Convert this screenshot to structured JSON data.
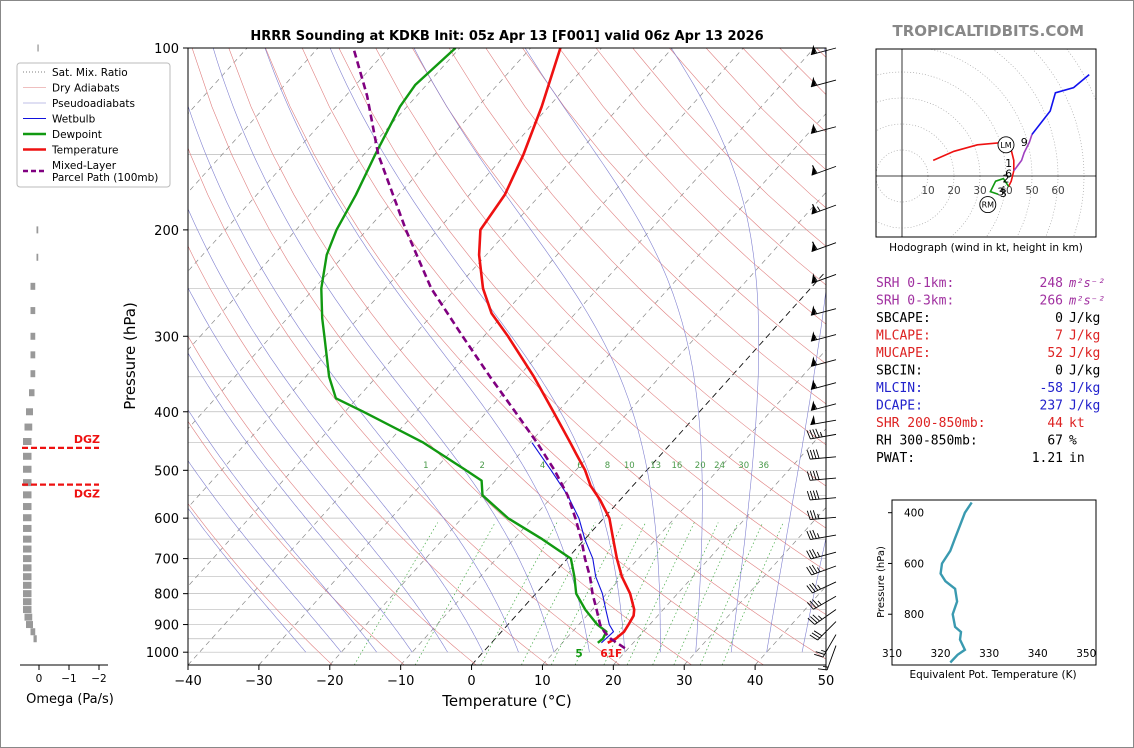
{
  "site": "TROPICALTIDBITS.COM",
  "title": "HRRR Sounding at KDKB Init: 05z Apr 13 [F001] valid 06z Apr 13 2026",
  "colors": {
    "temperature": "#ee1111",
    "dewpoint": "#119911",
    "wetbulb": "#1111dd",
    "parcel": "#800080",
    "dry_adiabat": "#e08080",
    "moist_adiabat": "#8080d0",
    "mixing_ratio": "#44aa44",
    "isotherm": "#555555",
    "theta_e": "#3a9ab0",
    "dgz": "#ee1111",
    "omega_bar": "#999999",
    "hodo_0_3": "#ee1111",
    "hodo_3_6": "#119911",
    "hodo_6_9": "#a040c0",
    "hodo_9_12": "#1111ee",
    "srh": "#a030a0",
    "ml": "#dd2222",
    "mlcin": "#2222cc"
  },
  "legend": [
    {
      "label": "Sat. Mix. Ratio",
      "color": "#555555",
      "style": "dotted"
    },
    {
      "label": "Dry Adiabats",
      "color": "#e08080",
      "style": "solid-thin"
    },
    {
      "label": "Pseudoadiabats",
      "color": "#8080d0",
      "style": "solid-thin"
    },
    {
      "label": "Wetbulb",
      "color": "#1111dd",
      "style": "solid"
    },
    {
      "label": "Dewpoint",
      "color": "#119911",
      "style": "solid-thick"
    },
    {
      "label": "Temperature",
      "color": "#ee1111",
      "style": "solid-thick"
    },
    {
      "label": "Mixed-Layer\nParcel Path (100mb)",
      "color": "#800080",
      "style": "dashed"
    }
  ],
  "omega": {
    "label": "Omega (Pa/s)",
    "ticks": [
      "0",
      "−1",
      "−2"
    ],
    "dgz_label": "DGZ",
    "dgz_bounds_hpa": [
      459,
      528
    ],
    "values": [
      {
        "p": 100,
        "w": 0.02
      },
      {
        "p": 112,
        "w": 0.05
      },
      {
        "p": 128,
        "w": 0.1
      },
      {
        "p": 146,
        "w": 0.12
      },
      {
        "p": 165,
        "w": 0.05
      },
      {
        "p": 200,
        "w": 0.05
      },
      {
        "p": 222,
        "w": 0.05
      },
      {
        "p": 248,
        "w": 0.25
      },
      {
        "p": 272,
        "w": 0.25
      },
      {
        "p": 300,
        "w": 0.25
      },
      {
        "p": 322,
        "w": 0.25
      },
      {
        "p": 346,
        "w": 0.25
      },
      {
        "p": 372,
        "w": 0.3
      },
      {
        "p": 400,
        "w": 0.4
      },
      {
        "p": 424,
        "w": 0.45
      },
      {
        "p": 448,
        "w": 0.5
      },
      {
        "p": 474,
        "w": 0.5
      },
      {
        "p": 498,
        "w": 0.5
      },
      {
        "p": 524,
        "w": 0.5
      },
      {
        "p": 549,
        "w": 0.5
      },
      {
        "p": 574,
        "w": 0.5
      },
      {
        "p": 599,
        "w": 0.5
      },
      {
        "p": 624,
        "w": 0.5
      },
      {
        "p": 650,
        "w": 0.5
      },
      {
        "p": 675,
        "w": 0.5
      },
      {
        "p": 700,
        "w": 0.5
      },
      {
        "p": 725,
        "w": 0.5
      },
      {
        "p": 750,
        "w": 0.5
      },
      {
        "p": 775,
        "w": 0.5
      },
      {
        "p": 800,
        "w": 0.5
      },
      {
        "p": 825,
        "w": 0.5
      },
      {
        "p": 850,
        "w": 0.5
      },
      {
        "p": 875,
        "w": 0.45
      },
      {
        "p": 900,
        "w": 0.4
      },
      {
        "p": 925,
        "w": 0.25
      },
      {
        "p": 950,
        "w": 0.15
      }
    ]
  },
  "chart_data": [
    {
      "type": "line",
      "subtype": "skew-t",
      "title": "HRRR Sounding at KDKB Init: 05z Apr 13 [F001] valid 06z Apr 13 2026",
      "xlabel": "Temperature (°C)",
      "ylabel": "Pressure (hPa)",
      "xlim": [
        -40,
        50
      ],
      "ylim": [
        1050,
        100
      ],
      "yscale": "log",
      "x_ticks": [
        -40,
        -30,
        -20,
        -10,
        0,
        10,
        20,
        30,
        40,
        50
      ],
      "y_ticks": [
        100,
        200,
        300,
        400,
        500,
        600,
        700,
        800,
        900,
        1000
      ],
      "mixing_ratio_labels": [
        "1",
        "2",
        "4",
        "6",
        "8",
        "10",
        "13",
        "16",
        "20",
        "24",
        "30",
        "36"
      ],
      "surface_temp_label": "61F",
      "surface_dewp_label": "5",
      "series": [
        {
          "name": "Temperature",
          "points": [
            {
              "p": 965,
              "t": 16.4
            },
            {
              "p": 950,
              "t": 17.0
            },
            {
              "p": 925,
              "t": 17.3
            },
            {
              "p": 900,
              "t": 17.0
            },
            {
              "p": 870,
              "t": 16.6
            },
            {
              "p": 850,
              "t": 15.9
            },
            {
              "p": 800,
              "t": 13.3
            },
            {
              "p": 750,
              "t": 10.0
            },
            {
              "p": 700,
              "t": 7.0
            },
            {
              "p": 650,
              "t": 4.0
            },
            {
              "p": 600,
              "t": 0.8
            },
            {
              "p": 560,
              "t": -2.8
            },
            {
              "p": 530,
              "t": -6.0
            },
            {
              "p": 500,
              "t": -8.7
            },
            {
              "p": 470,
              "t": -12.0
            },
            {
              "p": 450,
              "t": -14.3
            },
            {
              "p": 400,
              "t": -20.6
            },
            {
              "p": 350,
              "t": -27.8
            },
            {
              "p": 300,
              "t": -36.6
            },
            {
              "p": 275,
              "t": -41.8
            },
            {
              "p": 250,
              "t": -46.2
            },
            {
              "p": 220,
              "t": -51.0
            },
            {
              "p": 200,
              "t": -54.0
            },
            {
              "p": 175,
              "t": -55.0
            },
            {
              "p": 150,
              "t": -57.5
            },
            {
              "p": 125,
              "t": -61.0
            },
            {
              "p": 100,
              "t": -65.8
            }
          ]
        },
        {
          "name": "Dewpoint",
          "points": [
            {
              "p": 965,
              "t": 15.0
            },
            {
              "p": 950,
              "t": 15.2
            },
            {
              "p": 925,
              "t": 14.8
            },
            {
              "p": 900,
              "t": 12.6
            },
            {
              "p": 850,
              "t": 9.0
            },
            {
              "p": 800,
              "t": 5.7
            },
            {
              "p": 750,
              "t": 3.3
            },
            {
              "p": 700,
              "t": 0.5
            },
            {
              "p": 650,
              "t": -6.0
            },
            {
              "p": 600,
              "t": -13.5
            },
            {
              "p": 550,
              "t": -20.0
            },
            {
              "p": 520,
              "t": -22.0
            },
            {
              "p": 500,
              "t": -25.5
            },
            {
              "p": 450,
              "t": -35.0
            },
            {
              "p": 400,
              "t": -47.4
            },
            {
              "p": 380,
              "t": -53.0
            },
            {
              "p": 350,
              "t": -56.7
            },
            {
              "p": 300,
              "t": -62.5
            },
            {
              "p": 280,
              "t": -65.1
            },
            {
              "p": 250,
              "t": -69.0
            },
            {
              "p": 220,
              "t": -72.5
            },
            {
              "p": 200,
              "t": -74.3
            },
            {
              "p": 175,
              "t": -76.0
            },
            {
              "p": 150,
              "t": -78.4
            },
            {
              "p": 125,
              "t": -81.0
            },
            {
              "p": 115,
              "t": -81.6
            },
            {
              "p": 100,
              "t": -80.6
            }
          ]
        },
        {
          "name": "Wetbulb",
          "points": [
            {
              "p": 965,
              "t": 15.5
            },
            {
              "p": 925,
              "t": 15.8
            },
            {
              "p": 900,
              "t": 14.3
            },
            {
              "p": 850,
              "t": 11.9
            },
            {
              "p": 800,
              "t": 9.4
            },
            {
              "p": 750,
              "t": 6.3
            },
            {
              "p": 700,
              "t": 3.6
            },
            {
              "p": 650,
              "t": 0.0
            },
            {
              "p": 600,
              "t": -3.5
            },
            {
              "p": 550,
              "t": -8.0
            },
            {
              "p": 500,
              "t": -13.5
            },
            {
              "p": 450,
              "t": -19.7
            }
          ]
        },
        {
          "name": "Mixed-Layer Parcel Path (100mb)",
          "points": [
            {
              "p": 985,
              "t": 19.5
            },
            {
              "p": 950,
              "t": 16.3
            },
            {
              "p": 925,
              "t": 14.5
            },
            {
              "p": 900,
              "t": 13.0
            },
            {
              "p": 850,
              "t": 10.6
            },
            {
              "p": 800,
              "t": 8.0
            },
            {
              "p": 750,
              "t": 5.5
            },
            {
              "p": 700,
              "t": 2.5
            },
            {
              "p": 650,
              "t": -0.5
            },
            {
              "p": 600,
              "t": -4.0
            },
            {
              "p": 550,
              "t": -8.0
            },
            {
              "p": 500,
              "t": -13.0
            },
            {
              "p": 450,
              "t": -19.0
            },
            {
              "p": 400,
              "t": -26.0
            },
            {
              "p": 350,
              "t": -34.0
            },
            {
              "p": 300,
              "t": -43.0
            },
            {
              "p": 250,
              "t": -53.5
            },
            {
              "p": 200,
              "t": -64.5
            },
            {
              "p": 150,
              "t": -78.0
            },
            {
              "p": 120,
              "t": -87.0
            },
            {
              "p": 100,
              "t": -95.0
            }
          ]
        }
      ],
      "wind_barbs": [
        {
          "p": 100,
          "dir": 255,
          "kt": 55
        },
        {
          "p": 113,
          "dir": 255,
          "kt": 55
        },
        {
          "p": 135,
          "dir": 255,
          "kt": 55
        },
        {
          "p": 157,
          "dir": 250,
          "kt": 60
        },
        {
          "p": 182,
          "dir": 250,
          "kt": 65
        },
        {
          "p": 210,
          "dir": 250,
          "kt": 60
        },
        {
          "p": 237,
          "dir": 250,
          "kt": 55
        },
        {
          "p": 270,
          "dir": 255,
          "kt": 55
        },
        {
          "p": 298,
          "dir": 255,
          "kt": 55
        },
        {
          "p": 328,
          "dir": 255,
          "kt": 55
        },
        {
          "p": 358,
          "dir": 255,
          "kt": 55
        },
        {
          "p": 388,
          "dir": 255,
          "kt": 55
        },
        {
          "p": 413,
          "dir": 260,
          "kt": 50
        },
        {
          "p": 436,
          "dir": 260,
          "kt": 45
        },
        {
          "p": 475,
          "dir": 265,
          "kt": 40
        },
        {
          "p": 515,
          "dir": 265,
          "kt": 40
        },
        {
          "p": 555,
          "dir": 265,
          "kt": 40
        },
        {
          "p": 598,
          "dir": 265,
          "kt": 35
        },
        {
          "p": 640,
          "dir": 260,
          "kt": 35
        },
        {
          "p": 683,
          "dir": 255,
          "kt": 35
        },
        {
          "p": 720,
          "dir": 250,
          "kt": 35
        },
        {
          "p": 765,
          "dir": 245,
          "kt": 35
        },
        {
          "p": 808,
          "dir": 240,
          "kt": 35
        },
        {
          "p": 850,
          "dir": 235,
          "kt": 35
        },
        {
          "p": 890,
          "dir": 225,
          "kt": 30
        },
        {
          "p": 935,
          "dir": 210,
          "kt": 25
        },
        {
          "p": 975,
          "dir": 200,
          "kt": 15
        }
      ]
    },
    {
      "type": "line",
      "subtype": "hodograph",
      "caption": "Hodograph (wind in kt, height in km)",
      "ring_labels": [
        "10",
        "20",
        "30",
        "40",
        "50",
        "60"
      ],
      "xlim": [
        -10,
        75
      ],
      "ylim": [
        -22,
        43
      ],
      "height_labels": [
        {
          "text": "9",
          "u": 47,
          "v": 13
        },
        {
          "text": "1",
          "u": 41,
          "v": 5
        },
        {
          "text": "6",
          "u": 41,
          "v": 1
        },
        {
          "text": "2",
          "u": 40,
          "v": -1
        },
        {
          "text": "3",
          "u": 38,
          "v": -6
        },
        {
          "text": "3",
          "u": 39,
          "v": -6.5
        }
      ],
      "storm_motion": [
        {
          "label": "LM",
          "u": 40,
          "v": 12
        },
        {
          "label": "RM",
          "u": 33,
          "v": -11
        }
      ],
      "segments": [
        {
          "name": "0-3 km",
          "color": "#ee1111",
          "points": [
            [
              12,
              6
            ],
            [
              20,
              9.5
            ],
            [
              29,
              12
            ],
            [
              40,
              13
            ],
            [
              42,
              10
            ],
            [
              43,
              6
            ],
            [
              43,
              2
            ],
            [
              42,
              -2
            ],
            [
              41,
              -4
            ]
          ]
        },
        {
          "name": "3-6 km",
          "color": "#119911",
          "points": [
            [
              41,
              -4
            ],
            [
              39,
              -1
            ],
            [
              36,
              -2
            ],
            [
              34,
              -6
            ],
            [
              37,
              -7
            ]
          ]
        },
        {
          "name": "6-9 km",
          "color": "#a040c0",
          "points": [
            [
              43,
              2
            ],
            [
              46,
              6
            ],
            [
              47,
              9
            ],
            [
              49,
              13
            ],
            [
              50,
              16
            ]
          ]
        },
        {
          "name": "9-12 km",
          "color": "#1111ee",
          "points": [
            [
              50,
              16
            ],
            [
              57,
              25
            ],
            [
              59,
              32
            ],
            [
              66,
              34
            ],
            [
              72,
              39
            ]
          ]
        }
      ]
    },
    {
      "type": "line",
      "subtype": "theta-e profile",
      "xlabel": "Equivalent Pot. Temperature (K)",
      "ylabel": "Pressure (hPa)",
      "xlim": [
        310,
        352
      ],
      "ylim": [
        1000,
        350
      ],
      "x_ticks": [
        310,
        320,
        330,
        340,
        350
      ],
      "y_ticks": [
        400,
        600,
        800
      ],
      "points": [
        {
          "p": 990,
          "v": 322
        },
        {
          "p": 960,
          "v": 323.5
        },
        {
          "p": 940,
          "v": 325
        },
        {
          "p": 900,
          "v": 324
        },
        {
          "p": 870,
          "v": 324.2
        },
        {
          "p": 850,
          "v": 323
        },
        {
          "p": 800,
          "v": 322.5
        },
        {
          "p": 750,
          "v": 323.4
        },
        {
          "p": 700,
          "v": 323
        },
        {
          "p": 670,
          "v": 321
        },
        {
          "p": 640,
          "v": 320
        },
        {
          "p": 600,
          "v": 320.3
        },
        {
          "p": 550,
          "v": 322
        },
        {
          "p": 500,
          "v": 323
        },
        {
          "p": 450,
          "v": 324
        },
        {
          "p": 400,
          "v": 325
        },
        {
          "p": 360,
          "v": 326.4
        }
      ]
    }
  ],
  "indices": [
    {
      "label": "SRH 0-1km:",
      "value": "248",
      "unit": "m²s⁻²",
      "color": "#a030a0"
    },
    {
      "label": "SRH 0-3km:",
      "value": "266",
      "unit": "m²s⁻²",
      "color": "#a030a0"
    },
    {
      "label": "SBCAPE:",
      "value": "0",
      "unit": "J/kg",
      "color": "#000000"
    },
    {
      "label": "MLCAPE:",
      "value": "7",
      "unit": "J/kg",
      "color": "#dd2222"
    },
    {
      "label": "MUCAPE:",
      "value": "52",
      "unit": "J/kg",
      "color": "#dd2222"
    },
    {
      "label": "SBCIN:",
      "value": "0",
      "unit": "J/kg",
      "color": "#000000"
    },
    {
      "label": "MLCIN:",
      "value": "-58",
      "unit": "J/kg",
      "color": "#2222cc"
    },
    {
      "label": "DCAPE:",
      "value": "237",
      "unit": "J/kg",
      "color": "#2222cc"
    },
    {
      "label": "SHR 200-850mb:",
      "value": "44",
      "unit": "kt",
      "color": "#dd2222"
    },
    {
      "label": "RH 300-850mb:",
      "value": "67",
      "unit": "%",
      "color": "#000000"
    },
    {
      "label": "PWAT:",
      "value": "1.21",
      "unit": "in",
      "color": "#000000"
    }
  ]
}
